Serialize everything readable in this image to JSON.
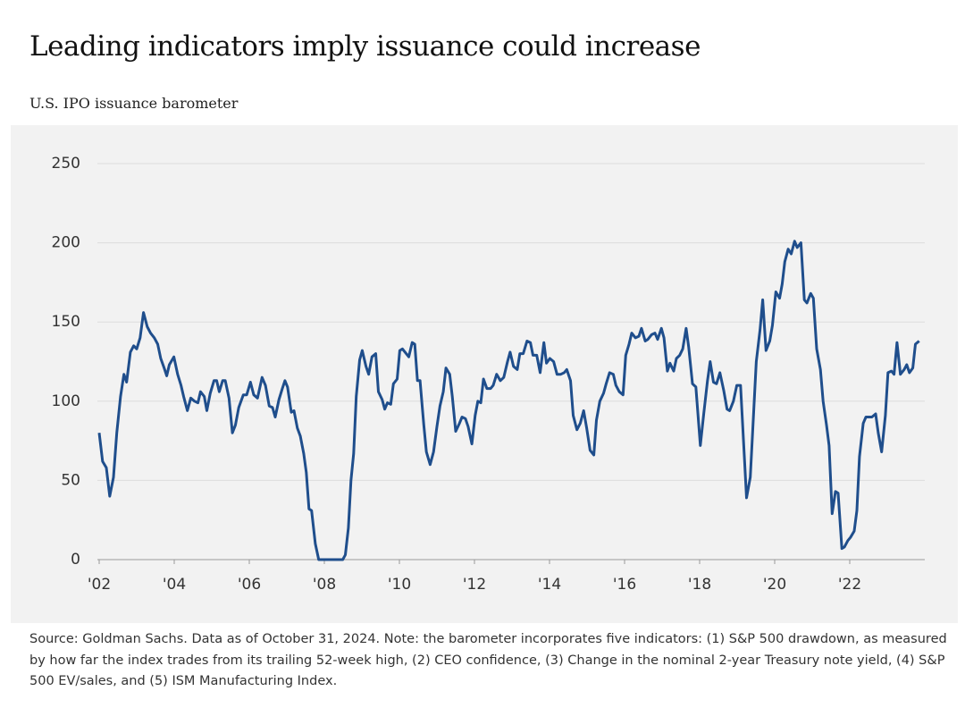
{
  "chart_data": {
    "type": "line",
    "title": "Leading indicators imply issuance could increase",
    "subtitle": "U.S. IPO issuance barometer",
    "note": "Source: Goldman Sachs. Data as of October 31, 2024. Note: the barometer incorporates five indicators: (1) S&P 500 drawdown, as measured by how far the index trades from its trailing 52-week high, (2) CEO confidence, (3) Change in the nominal 2-year Treasury note yield, (4) S&P 500 EV/sales, and (5) ISM Manufacturing Index.",
    "x": [
      2002.0,
      2002.09,
      2002.19,
      2002.28,
      2002.38,
      2002.47,
      2002.57,
      2002.66,
      2002.73,
      2002.83,
      2002.92,
      2003.0,
      2003.09,
      2003.18,
      2003.28,
      2003.37,
      2003.47,
      2003.56,
      2003.64,
      2003.73,
      2003.8,
      2003.87,
      2003.99,
      2004.09,
      2004.18,
      2004.25,
      2004.35,
      2004.44,
      2004.54,
      2004.63,
      2004.7,
      2004.8,
      2004.87,
      2004.96,
      2005.06,
      2005.13,
      2005.2,
      2005.29,
      2005.36,
      2005.46,
      2005.55,
      2005.63,
      2005.72,
      2005.84,
      2005.93,
      2006.03,
      2006.12,
      2006.22,
      2006.34,
      2006.43,
      2006.53,
      2006.62,
      2006.69,
      2006.79,
      2006.88,
      2006.95,
      2007.02,
      2007.12,
      2007.19,
      2007.28,
      2007.36,
      2007.45,
      2007.52,
      2007.59,
      2007.66,
      2007.76,
      2007.85,
      2008.49,
      2008.56,
      2008.64,
      2008.71,
      2008.78,
      2008.85,
      2008.94,
      2009.01,
      2009.11,
      2009.18,
      2009.27,
      2009.37,
      2009.44,
      2009.54,
      2009.61,
      2009.68,
      2009.77,
      2009.84,
      2009.94,
      2010.01,
      2010.08,
      2010.18,
      2010.25,
      2010.34,
      2010.41,
      2010.48,
      2010.55,
      2010.65,
      2010.72,
      2010.82,
      2010.91,
      2011.0,
      2011.08,
      2011.17,
      2011.24,
      2011.34,
      2011.41,
      2011.5,
      2011.6,
      2011.67,
      2011.76,
      2011.83,
      2011.93,
      2012.02,
      2012.09,
      2012.17,
      2012.24,
      2012.33,
      2012.43,
      2012.5,
      2012.59,
      2012.69,
      2012.78,
      2012.88,
      2012.95,
      2013.04,
      2013.14,
      2013.21,
      2013.3,
      2013.4,
      2013.49,
      2013.56,
      2013.66,
      2013.75,
      2013.85,
      2013.92,
      2014.01,
      2014.11,
      2014.2,
      2014.3,
      2014.39,
      2014.46,
      2014.56,
      2014.63,
      2014.73,
      2014.82,
      2014.91,
      2014.99,
      2015.08,
      2015.18,
      2015.25,
      2015.34,
      2015.44,
      2015.51,
      2015.6,
      2015.7,
      2015.77,
      2015.86,
      2015.96,
      2016.03,
      2016.12,
      2016.19,
      2016.29,
      2016.38,
      2016.45,
      2016.55,
      2016.62,
      2016.72,
      2016.81,
      2016.88,
      2016.98,
      2017.05,
      2017.14,
      2017.21,
      2017.31,
      2017.38,
      2017.47,
      2017.55,
      2017.64,
      2017.71,
      2017.81,
      2017.9,
      2018.02,
      2018.11,
      2018.21,
      2018.28,
      2018.37,
      2018.45,
      2018.54,
      2018.64,
      2018.73,
      2018.8,
      2018.9,
      2018.99,
      2019.09,
      2019.25,
      2019.35,
      2019.51,
      2019.61,
      2019.68,
      2019.77,
      2019.87,
      2019.94,
      2020.03,
      2020.13,
      2020.2,
      2020.27,
      2020.36,
      2020.44,
      2020.53,
      2020.6,
      2020.7,
      2020.79,
      2020.86,
      2020.96,
      2021.03,
      2021.12,
      2021.22,
      2021.29,
      2021.38,
      2021.45,
      2021.53,
      2021.62,
      2021.69,
      2021.79,
      2021.86,
      2021.95,
      2022.02,
      2022.12,
      2022.19,
      2022.26,
      2022.36,
      2022.43,
      2022.52,
      2022.59,
      2022.69,
      2022.76,
      2022.85,
      2022.95,
      2023.02,
      2023.11,
      2023.18,
      2023.26,
      2023.35,
      2023.45,
      2023.52,
      2023.59,
      2023.68,
      2023.75,
      2023.85
    ],
    "series": [
      {
        "name": "U.S. IPO issuance barometer",
        "color": "#1f4e8c",
        "values": [
          80,
          62,
          58,
          40,
          52,
          80,
          103,
          117,
          112,
          131,
          135,
          133,
          140,
          156,
          147,
          143,
          140,
          136,
          127,
          121,
          116,
          123,
          128,
          117,
          110,
          103,
          94,
          102,
          100,
          99,
          106,
          103,
          94,
          105,
          113,
          113,
          106,
          113,
          113,
          102,
          80,
          85,
          96,
          104,
          104,
          112,
          104,
          102,
          115,
          110,
          97,
          96,
          90,
          101,
          108,
          113,
          109,
          93,
          94,
          83,
          78,
          67,
          55,
          32,
          31,
          10,
          0,
          0,
          3,
          20,
          50,
          67,
          103,
          126,
          132,
          122,
          117,
          128,
          130,
          106,
          101,
          95,
          99,
          98,
          111,
          114,
          132,
          133,
          130,
          128,
          137,
          136,
          113,
          113,
          85,
          68,
          60,
          68,
          84,
          97,
          106,
          121,
          117,
          103,
          81,
          86,
          90,
          89,
          84,
          73,
          91,
          100,
          99,
          114,
          108,
          108,
          110,
          117,
          113,
          115,
          125,
          131,
          122,
          120,
          130,
          130,
          138,
          137,
          129,
          129,
          118,
          137,
          124,
          127,
          125,
          117,
          117,
          118,
          120,
          113,
          91,
          82,
          86,
          94,
          83,
          69,
          66,
          88,
          100,
          105,
          111,
          118,
          117,
          110,
          106,
          104,
          129,
          136,
          143,
          140,
          141,
          146,
          138,
          139,
          142,
          143,
          139,
          146,
          140,
          119,
          124,
          119,
          127,
          129,
          133,
          146,
          134,
          111,
          109,
          72,
          92,
          113,
          125,
          112,
          111,
          118,
          107,
          95,
          94,
          100,
          110,
          110,
          39,
          52,
          125,
          145,
          164,
          132,
          138,
          148,
          169,
          165,
          174,
          188,
          196,
          193,
          201,
          197,
          200,
          164,
          162,
          168,
          165,
          133,
          120,
          100,
          85,
          72,
          29,
          43,
          42,
          7,
          8,
          12,
          14,
          18,
          31,
          65,
          86,
          90,
          90,
          90,
          92,
          80,
          68,
          91,
          118,
          119,
          117,
          137,
          117,
          120,
          123,
          118,
          121,
          136,
          138
        ]
      }
    ],
    "xlim": [
      2002,
      2024
    ],
    "xticks": [
      {
        "value": 2002,
        "label": "'02"
      },
      {
        "value": 2004,
        "label": "'04"
      },
      {
        "value": 2006,
        "label": "'06"
      },
      {
        "value": 2008,
        "label": "'08"
      },
      {
        "value": 2010,
        "label": "'10"
      },
      {
        "value": 2012,
        "label": "'12"
      },
      {
        "value": 2014,
        "label": "'14"
      },
      {
        "value": 2016,
        "label": "'16"
      },
      {
        "value": 2018,
        "label": "'18"
      },
      {
        "value": 2020,
        "label": "'20"
      },
      {
        "value": 2022,
        "label": "'22"
      }
    ],
    "ylim": [
      0,
      250
    ],
    "yticks": [
      0,
      50,
      100,
      150,
      200,
      250
    ],
    "grid": true
  }
}
